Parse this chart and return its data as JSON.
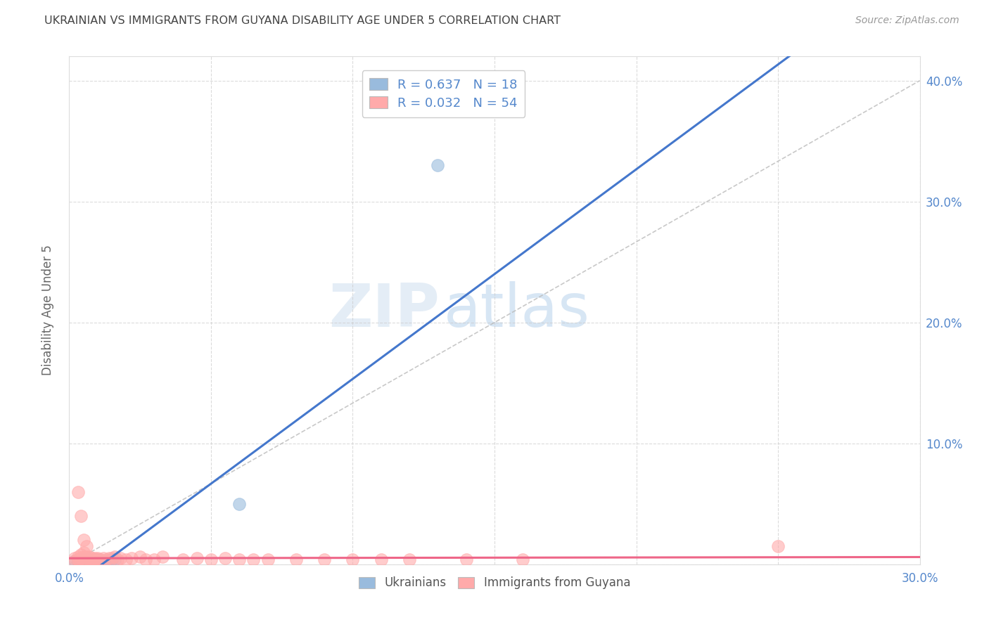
{
  "title": "UKRAINIAN VS IMMIGRANTS FROM GUYANA DISABILITY AGE UNDER 5 CORRELATION CHART",
  "source": "Source: ZipAtlas.com",
  "ylabel": "Disability Age Under 5",
  "xlim": [
    0.0,
    0.3
  ],
  "ylim": [
    0.0,
    0.42
  ],
  "xticks": [
    0.0,
    0.05,
    0.1,
    0.15,
    0.2,
    0.25,
    0.3
  ],
  "xtick_labels": [
    "0.0%",
    "",
    "",
    "",
    "",
    "",
    "30.0%"
  ],
  "yticks": [
    0.0,
    0.1,
    0.2,
    0.3,
    0.4
  ],
  "right_ytick_labels": [
    "",
    "10.0%",
    "20.0%",
    "30.0%",
    "40.0%"
  ],
  "blue_color": "#99BBDD",
  "pink_color": "#FFAAAA",
  "blue_line_color": "#4477CC",
  "pink_line_color": "#EE6688",
  "dashed_line_color": "#BBBBBB",
  "watermark_text": "ZIPatlas",
  "background_color": "#FFFFFF",
  "grid_color": "#CCCCCC",
  "title_color": "#444444",
  "axis_label_color": "#5588CC",
  "legend_label_color": "#5588CC",
  "ukrainians_x": [
    0.002,
    0.003,
    0.004,
    0.005,
    0.005,
    0.006,
    0.007,
    0.007,
    0.008,
    0.009,
    0.01,
    0.011,
    0.012,
    0.013,
    0.015,
    0.016,
    0.13,
    0.06
  ],
  "ukrainians_y": [
    0.003,
    0.003,
    0.002,
    0.004,
    0.003,
    0.004,
    0.003,
    0.004,
    0.003,
    0.004,
    0.004,
    0.003,
    0.003,
    0.003,
    0.004,
    0.004,
    0.33,
    0.05
  ],
  "guyana_x": [
    0.002,
    0.002,
    0.003,
    0.003,
    0.003,
    0.004,
    0.004,
    0.005,
    0.005,
    0.005,
    0.006,
    0.006,
    0.006,
    0.007,
    0.007,
    0.008,
    0.008,
    0.009,
    0.009,
    0.01,
    0.01,
    0.011,
    0.012,
    0.013,
    0.014,
    0.015,
    0.016,
    0.017,
    0.018,
    0.02,
    0.022,
    0.025,
    0.027,
    0.03,
    0.033,
    0.04,
    0.045,
    0.05,
    0.055,
    0.06,
    0.065,
    0.07,
    0.08,
    0.09,
    0.1,
    0.11,
    0.12,
    0.14,
    0.16,
    0.25,
    0.003,
    0.004,
    0.005,
    0.006
  ],
  "guyana_y": [
    0.003,
    0.005,
    0.004,
    0.006,
    0.004,
    0.005,
    0.008,
    0.004,
    0.006,
    0.01,
    0.004,
    0.006,
    0.004,
    0.004,
    0.006,
    0.004,
    0.005,
    0.004,
    0.005,
    0.004,
    0.005,
    0.004,
    0.005,
    0.004,
    0.005,
    0.005,
    0.006,
    0.004,
    0.005,
    0.004,
    0.005,
    0.006,
    0.004,
    0.004,
    0.006,
    0.004,
    0.005,
    0.004,
    0.005,
    0.004,
    0.004,
    0.004,
    0.004,
    0.004,
    0.004,
    0.004,
    0.004,
    0.004,
    0.004,
    0.015,
    0.06,
    0.04,
    0.02,
    0.015
  ],
  "blue_line_x": [
    0.0,
    0.3
  ],
  "blue_line_y": [
    -0.02,
    0.5
  ],
  "pink_line_x": [
    0.0,
    0.3
  ],
  "pink_line_y": [
    0.005,
    0.006
  ],
  "dash_line_x": [
    0.0,
    0.3
  ],
  "dash_line_y": [
    0.0,
    0.4
  ]
}
